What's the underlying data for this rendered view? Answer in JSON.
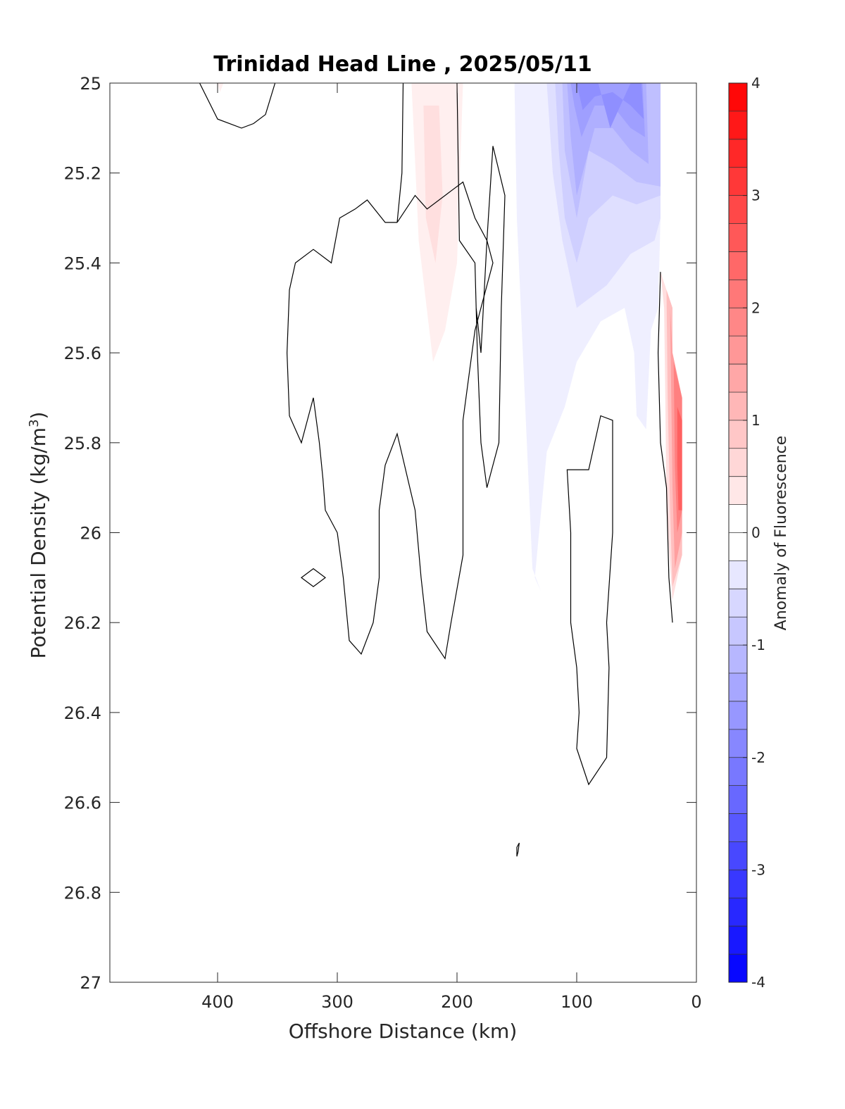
{
  "chart_data": {
    "type": "contour",
    "title": "Trinidad Head Line , 2025/05/11",
    "xlabel": "Offshore Distance (km)",
    "ylabel_main": "Potential Density (kg/m",
    "ylabel_sup": "3",
    "ylabel_close": ")",
    "colorbar_label": "Anomaly of Fluorescence",
    "xlim": [
      490,
      0
    ],
    "ylim": [
      25,
      27
    ],
    "xticks": [
      400,
      300,
      200,
      100,
      0
    ],
    "xtick_labels": [
      "400",
      "300",
      "200",
      "100",
      "0"
    ],
    "yticks": [
      25,
      25.2,
      25.4,
      25.6,
      25.8,
      26,
      26.2,
      26.4,
      26.6,
      26.8,
      27
    ],
    "ytick_labels": [
      "25",
      "25.2",
      "25.4",
      "25.6",
      "25.8",
      "26",
      "26.2",
      "26.4",
      "26.6",
      "26.8",
      "27"
    ],
    "colorbar": {
      "range": [
        -4,
        4
      ],
      "ticks": [
        4,
        3,
        2,
        1,
        0,
        -1,
        -2,
        -3,
        -4
      ],
      "tick_labels": [
        "4",
        "3",
        "2",
        "1",
        "0",
        "-1",
        "-2",
        "-3",
        "-4"
      ],
      "levels": 32,
      "neg_color": "#0000ff",
      "pos_color": "#ff0000",
      "mid_color": "#ffffff"
    },
    "filled_regions": [
      {
        "level": 0.25,
        "points": [
          [
            238,
            25.0
          ],
          [
            195,
            25.0
          ],
          [
            200,
            25.4
          ],
          [
            210,
            25.55
          ],
          [
            220,
            25.62
          ],
          [
            232,
            25.35
          ]
        ]
      },
      {
        "level": 0.5,
        "points": [
          [
            228,
            25.05
          ],
          [
            215,
            25.05
          ],
          [
            212,
            25.25
          ],
          [
            218,
            25.4
          ],
          [
            226,
            25.3
          ]
        ]
      },
      {
        "level": 0.25,
        "points": [
          [
            400,
            25.0
          ],
          [
            395,
            25.0
          ],
          [
            398,
            25.02
          ]
        ]
      },
      {
        "level": -0.25,
        "points": [
          [
            152,
            25.0
          ],
          [
            30,
            25.0
          ],
          [
            30,
            25.3
          ],
          [
            32,
            25.5
          ],
          [
            38,
            25.55
          ],
          [
            42,
            25.77
          ],
          [
            50,
            25.74
          ],
          [
            52,
            25.6
          ],
          [
            60,
            25.5
          ],
          [
            80,
            25.53
          ],
          [
            100,
            25.62
          ],
          [
            110,
            25.72
          ],
          [
            125,
            25.82
          ],
          [
            135,
            26.1
          ],
          [
            130,
            26.13
          ],
          [
            137,
            26.08
          ],
          [
            140,
            25.9
          ],
          [
            145,
            25.6
          ],
          [
            150,
            25.3
          ]
        ]
      },
      {
        "level": -0.5,
        "points": [
          [
            125,
            25.0
          ],
          [
            30,
            25.0
          ],
          [
            30,
            25.3
          ],
          [
            35,
            25.35
          ],
          [
            55,
            25.38
          ],
          [
            75,
            25.45
          ],
          [
            100,
            25.5
          ],
          [
            112,
            25.35
          ],
          [
            120,
            25.2
          ]
        ]
      },
      {
        "level": -0.75,
        "points": [
          [
            118,
            25.0
          ],
          [
            30,
            25.0
          ],
          [
            30,
            25.25
          ],
          [
            50,
            25.27
          ],
          [
            70,
            25.25
          ],
          [
            90,
            25.3
          ],
          [
            100,
            25.4
          ],
          [
            110,
            25.3
          ],
          [
            115,
            25.15
          ]
        ]
      },
      {
        "level": -1.0,
        "points": [
          [
            112,
            25.0
          ],
          [
            30,
            25.0
          ],
          [
            30,
            25.23
          ],
          [
            50,
            25.22
          ],
          [
            70,
            25.18
          ],
          [
            90,
            25.15
          ],
          [
            100,
            25.3
          ],
          [
            110,
            25.15
          ]
        ]
      },
      {
        "level": -1.25,
        "points": [
          [
            108,
            25.0
          ],
          [
            42,
            25.0
          ],
          [
            40,
            25.18
          ],
          [
            55,
            25.15
          ],
          [
            70,
            25.1
          ],
          [
            85,
            25.1
          ],
          [
            100,
            25.25
          ],
          [
            105,
            25.12
          ]
        ]
      },
      {
        "level": -1.5,
        "points": [
          [
            105,
            25.0
          ],
          [
            45,
            25.0
          ],
          [
            43,
            25.12
          ],
          [
            55,
            25.1
          ],
          [
            70,
            25.05
          ],
          [
            85,
            25.05
          ],
          [
            96,
            25.12
          ],
          [
            102,
            25.05
          ]
        ]
      },
      {
        "level": -1.75,
        "points": [
          [
            100,
            25.0
          ],
          [
            82,
            25.0
          ],
          [
            72,
            25.1
          ],
          [
            55,
            25.0
          ],
          [
            46,
            25.0
          ],
          [
            44,
            25.08
          ],
          [
            55,
            25.05
          ],
          [
            70,
            25.02
          ],
          [
            85,
            25.03
          ],
          [
            95,
            25.06
          ]
        ]
      },
      {
        "level": 0.5,
        "points": [
          [
            30,
            25.42
          ],
          [
            20,
            25.5
          ],
          [
            20,
            25.6
          ],
          [
            12,
            25.7
          ],
          [
            12,
            26.05
          ],
          [
            20,
            26.15
          ],
          [
            25,
            25.95
          ],
          [
            26,
            25.7
          ],
          [
            27,
            25.5
          ]
        ]
      },
      {
        "level": 1.0,
        "points": [
          [
            25,
            25.46
          ],
          [
            20,
            25.5
          ],
          [
            20,
            25.6
          ],
          [
            12,
            25.7
          ],
          [
            12,
            26.05
          ],
          [
            20,
            26.12
          ],
          [
            22,
            25.95
          ],
          [
            24,
            25.7
          ]
        ]
      },
      {
        "level": 1.5,
        "points": [
          [
            22,
            25.5
          ],
          [
            20,
            25.6
          ],
          [
            12,
            25.7
          ],
          [
            12,
            26.0
          ],
          [
            18,
            26.08
          ],
          [
            20,
            25.9
          ],
          [
            21,
            25.7
          ]
        ]
      },
      {
        "level": 2.0,
        "points": [
          [
            19,
            25.62
          ],
          [
            12,
            25.7
          ],
          [
            12,
            25.95
          ],
          [
            16,
            26.0
          ],
          [
            18,
            25.85
          ]
        ]
      },
      {
        "level": 2.5,
        "points": [
          [
            16,
            25.72
          ],
          [
            12,
            25.75
          ],
          [
            12,
            25.95
          ],
          [
            15,
            25.95
          ],
          [
            16,
            25.85
          ]
        ]
      }
    ],
    "contour_lines": [
      {
        "closed": false,
        "points": [
          [
            415,
            25.0
          ],
          [
            400,
            25.08
          ],
          [
            380,
            25.1
          ],
          [
            370,
            25.09
          ],
          [
            360,
            25.07
          ],
          [
            352,
            25.0
          ]
        ]
      },
      {
        "closed": false,
        "points": [
          [
            245,
            25.0
          ],
          [
            246,
            25.2
          ],
          [
            250,
            25.31
          ],
          [
            235,
            25.25
          ],
          [
            225,
            25.28
          ],
          [
            205,
            25.24
          ],
          [
            195,
            25.22
          ],
          [
            185,
            25.3
          ],
          [
            175,
            25.35
          ],
          [
            170,
            25.4
          ],
          [
            185,
            25.55
          ],
          [
            195,
            25.75
          ],
          [
            195,
            26.05
          ],
          [
            205,
            26.2
          ],
          [
            210,
            26.28
          ],
          [
            225,
            26.22
          ],
          [
            230,
            26.1
          ],
          [
            235,
            25.95
          ],
          [
            250,
            25.78
          ],
          [
            260,
            25.85
          ],
          [
            265,
            25.95
          ],
          [
            265,
            26.1
          ],
          [
            270,
            26.2
          ],
          [
            280,
            26.27
          ],
          [
            290,
            26.24
          ],
          [
            295,
            26.1
          ],
          [
            300,
            26.0
          ],
          [
            310,
            25.95
          ],
          [
            312,
            25.88
          ],
          [
            315,
            25.8
          ],
          [
            320,
            25.7
          ],
          [
            330,
            25.8
          ],
          [
            340,
            25.74
          ],
          [
            342,
            25.6
          ],
          [
            340,
            25.46
          ],
          [
            335,
            25.4
          ],
          [
            320,
            25.37
          ],
          [
            305,
            25.4
          ],
          [
            298,
            25.3
          ],
          [
            285,
            25.28
          ],
          [
            275,
            25.26
          ],
          [
            260,
            25.31
          ],
          [
            250,
            25.31
          ]
        ]
      },
      {
        "closed": false,
        "points": [
          [
            200,
            25.0
          ],
          [
            198,
            25.35
          ],
          [
            185,
            25.4
          ],
          [
            183,
            25.6
          ],
          [
            180,
            25.8
          ],
          [
            175,
            25.9
          ],
          [
            165,
            25.8
          ],
          [
            163,
            25.5
          ],
          [
            160,
            25.25
          ],
          [
            170,
            25.14
          ],
          [
            175,
            25.35
          ],
          [
            180,
            25.6
          ],
          [
            184,
            25.5
          ]
        ]
      },
      {
        "closed": true,
        "points": [
          [
            330,
            26.1
          ],
          [
            320,
            26.08
          ],
          [
            310,
            26.1
          ],
          [
            320,
            26.12
          ]
        ]
      },
      {
        "closed": true,
        "points": [
          [
            90,
            25.86
          ],
          [
            80,
            25.74
          ],
          [
            70,
            25.75
          ],
          [
            70,
            26.0
          ],
          [
            75,
            26.2
          ],
          [
            73,
            26.3
          ],
          [
            75,
            26.5
          ],
          [
            90,
            26.56
          ],
          [
            100,
            26.48
          ],
          [
            98,
            26.4
          ],
          [
            100,
            26.3
          ],
          [
            105,
            26.2
          ],
          [
            105,
            26.0
          ],
          [
            108,
            25.86
          ]
        ]
      },
      {
        "closed": true,
        "points": [
          [
            150,
            26.7
          ],
          [
            148,
            26.69
          ],
          [
            149,
            26.71
          ],
          [
            150,
            26.72
          ]
        ]
      },
      {
        "closed": false,
        "points": [
          [
            30,
            25.42
          ],
          [
            32,
            25.6
          ],
          [
            30,
            25.8
          ],
          [
            25,
            25.9
          ],
          [
            23,
            26.1
          ],
          [
            20,
            26.2
          ]
        ]
      }
    ]
  }
}
